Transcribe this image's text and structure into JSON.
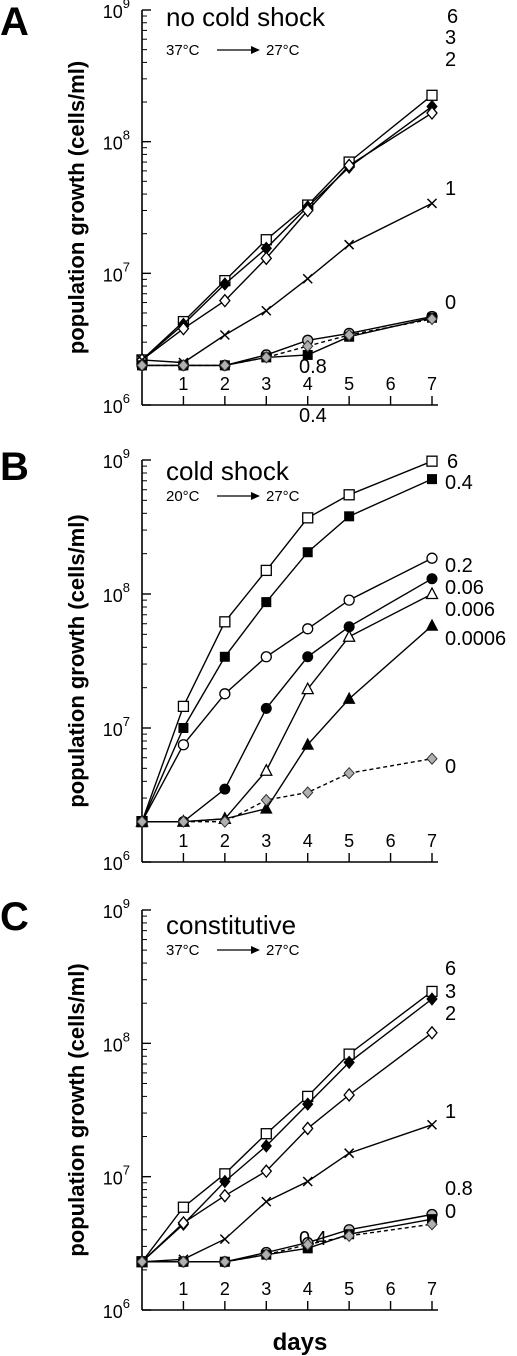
{
  "x_axis_label": "days",
  "chart_data": [
    {
      "type": "line",
      "panel_letter": "A",
      "title": "no cold shock",
      "subtitle": {
        "from": "37°C",
        "to": "27°C"
      },
      "ylabel": "population growth (cells/ml)",
      "xlabel": "",
      "y_scale": "log",
      "ylim": [
        1000000,
        1000000000
      ],
      "xlim": [
        0,
        7
      ],
      "x_ticks": [
        1,
        2,
        3,
        4,
        5,
        6,
        7
      ],
      "y_ticks": [
        {
          "base": "10",
          "exp": "6"
        },
        {
          "base": "10",
          "exp": "7"
        },
        {
          "base": "10",
          "exp": "8"
        },
        {
          "base": "10",
          "exp": "9"
        }
      ],
      "x": [
        0,
        1,
        2,
        3,
        4,
        5,
        7
      ],
      "series": [
        {
          "name": "6",
          "marker": "open-square",
          "dashed": false,
          "values": [
            2200000,
            4300000,
            8800000,
            18000000,
            33000000,
            70000000,
            225000000
          ]
        },
        {
          "name": "3",
          "marker": "filled-diamond",
          "dashed": false,
          "values": [
            2200000,
            4100000,
            8300000,
            15500000,
            32000000,
            64000000,
            185000000
          ]
        },
        {
          "name": "2",
          "marker": "open-diamond",
          "dashed": false,
          "values": [
            2200000,
            3800000,
            6200000,
            13000000,
            30000000,
            66000000,
            165000000
          ]
        },
        {
          "name": "1",
          "marker": "cross",
          "dashed": false,
          "values": [
            2200000,
            2100000,
            3400000,
            5200000,
            9100000,
            16500000,
            34000000
          ]
        },
        {
          "name": "0.8",
          "marker": "gray-circle",
          "dashed": false,
          "values": [
            2000000,
            2000000,
            2000000,
            2400000,
            3100000,
            3500000,
            4700000
          ]
        },
        {
          "name": "0.4",
          "marker": "filled-square",
          "dashed": false,
          "values": [
            2000000,
            2000000,
            2000000,
            2300000,
            2400000,
            3300000,
            4600000
          ]
        },
        {
          "name": "0",
          "marker": "gray-diamond",
          "dashed": true,
          "values": [
            2000000,
            2000000,
            2000000,
            2300000,
            2800000,
            3400000,
            4500000
          ]
        }
      ]
    },
    {
      "type": "line",
      "panel_letter": "B",
      "title": "cold shock",
      "subtitle": {
        "from": "20°C",
        "to": "27°C"
      },
      "ylabel": "population growth (cells/ml)",
      "xlabel": "",
      "y_scale": "log",
      "ylim": [
        1000000,
        1000000000
      ],
      "xlim": [
        0,
        7
      ],
      "x_ticks": [
        1,
        2,
        3,
        4,
        5,
        6,
        7
      ],
      "y_ticks": [
        {
          "base": "10",
          "exp": "6"
        },
        {
          "base": "10",
          "exp": "7"
        },
        {
          "base": "10",
          "exp": "8"
        },
        {
          "base": "10",
          "exp": "9"
        }
      ],
      "x": [
        0,
        1,
        2,
        3,
        4,
        5,
        7
      ],
      "series": [
        {
          "name": "6",
          "marker": "open-square",
          "dashed": false,
          "values": [
            2000000,
            14500000,
            62000000,
            150000000,
            370000000,
            550000000,
            980000000
          ]
        },
        {
          "name": "0.4",
          "marker": "filled-square",
          "dashed": false,
          "values": [
            2000000,
            10000000,
            34000000,
            87000000,
            205000000,
            380000000,
            720000000
          ]
        },
        {
          "name": "0.2",
          "marker": "open-circle",
          "dashed": false,
          "values": [
            2000000,
            7500000,
            18000000,
            34000000,
            55000000,
            90000000,
            185000000
          ]
        },
        {
          "name": "0.06",
          "marker": "filled-circle",
          "dashed": false,
          "values": [
            2000000,
            2000000,
            3500000,
            14000000,
            34000000,
            57000000,
            130000000
          ]
        },
        {
          "name": "0.006",
          "marker": "open-triangle",
          "dashed": false,
          "values": [
            2000000,
            2000000,
            2100000,
            4800000,
            19500000,
            48000000,
            100000000
          ]
        },
        {
          "name": "0.0006",
          "marker": "filled-triangle",
          "dashed": false,
          "values": [
            2000000,
            2000000,
            2100000,
            2500000,
            7500000,
            16500000,
            58000000
          ]
        },
        {
          "name": "0",
          "marker": "gray-diamond",
          "dashed": true,
          "values": [
            2000000,
            2000000,
            2000000,
            2900000,
            3300000,
            4600000,
            5900000
          ]
        }
      ]
    },
    {
      "type": "line",
      "panel_letter": "C",
      "title": "constitutive",
      "subtitle": {
        "from": "37°C",
        "to": "27°C"
      },
      "ylabel": "population growth (cells/ml)",
      "xlabel": "days",
      "y_scale": "log",
      "ylim": [
        1000000,
        1000000000
      ],
      "xlim": [
        0,
        7
      ],
      "x_ticks": [
        1,
        2,
        3,
        4,
        5,
        6,
        7
      ],
      "y_ticks": [
        {
          "base": "10",
          "exp": "6"
        },
        {
          "base": "10",
          "exp": "7"
        },
        {
          "base": "10",
          "exp": "8"
        },
        {
          "base": "10",
          "exp": "9"
        }
      ],
      "x": [
        0,
        1,
        2,
        3,
        4,
        5,
        7
      ],
      "series": [
        {
          "name": "6",
          "marker": "open-square",
          "dashed": false,
          "values": [
            2300000,
            5900000,
            10500000,
            21000000,
            40000000,
            83000000,
            245000000
          ]
        },
        {
          "name": "3",
          "marker": "filled-diamond",
          "dashed": false,
          "values": [
            2300000,
            4400000,
            9200000,
            17000000,
            35000000,
            72000000,
            215000000
          ]
        },
        {
          "name": "2",
          "marker": "open-diamond",
          "dashed": false,
          "values": [
            2300000,
            4500000,
            7200000,
            11000000,
            23000000,
            41000000,
            120000000
          ]
        },
        {
          "name": "1",
          "marker": "cross",
          "dashed": false,
          "values": [
            2300000,
            2400000,
            3400000,
            6500000,
            9200000,
            15000000,
            24500000
          ]
        },
        {
          "name": "0.8",
          "marker": "gray-circle",
          "dashed": false,
          "values": [
            2300000,
            2300000,
            2300000,
            2700000,
            3200000,
            4000000,
            5200000
          ]
        },
        {
          "name": "0.4",
          "marker": "filled-square",
          "dashed": false,
          "values": [
            2300000,
            2300000,
            2300000,
            2600000,
            2900000,
            3700000,
            4800000
          ]
        },
        {
          "name": "0",
          "marker": "gray-diamond",
          "dashed": true,
          "values": [
            2300000,
            2300000,
            2300000,
            2600000,
            3100000,
            3600000,
            4400000
          ]
        }
      ]
    }
  ]
}
